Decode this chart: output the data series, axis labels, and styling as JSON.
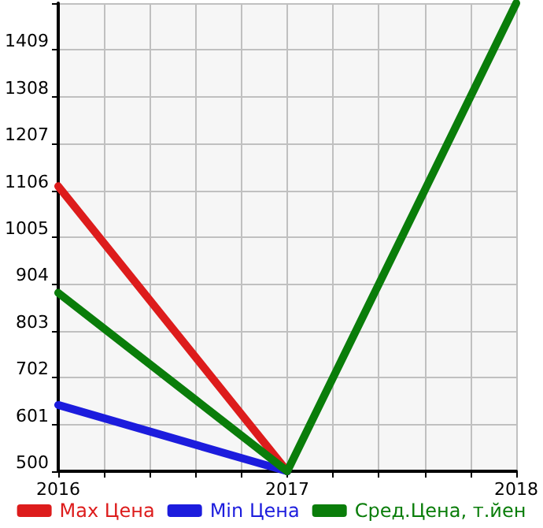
{
  "chart_data": {
    "type": "line",
    "x": [
      2016,
      2017,
      2018
    ],
    "xlim": [
      2016,
      2018
    ],
    "xticks": [
      2016,
      {
        "value": 2016.2,
        "label": null
      },
      {
        "value": 2016.4,
        "label": null
      },
      {
        "value": 2016.6,
        "label": null
      },
      {
        "value": 2016.8,
        "label": null
      },
      2017,
      {
        "value": 2017.2,
        "label": null
      },
      {
        "value": 2017.4,
        "label": null
      },
      {
        "value": 2017.6,
        "label": null
      },
      {
        "value": 2017.8,
        "label": null
      },
      2018
    ],
    "ylim": [
      500,
      1510
    ],
    "yticks": [
      500,
      601,
      702,
      803,
      904,
      1005,
      1106,
      1207,
      1308,
      1409,
      {
        "value": 1510,
        "label": null
      }
    ],
    "series": [
      {
        "name": "Max Цена",
        "color": "#dd1c1c",
        "values": [
          1115,
          500,
          null
        ]
      },
      {
        "name": "Min Цена",
        "color": "#1c1cdd",
        "values": [
          643,
          500,
          null
        ]
      },
      {
        "name": "Сред.Цена, т.йен",
        "color": "#0a7d0a",
        "values": [
          885,
          500,
          1510
        ]
      }
    ],
    "grid": true,
    "legend": "bottom",
    "marker": "none",
    "line_style": "solid"
  }
}
